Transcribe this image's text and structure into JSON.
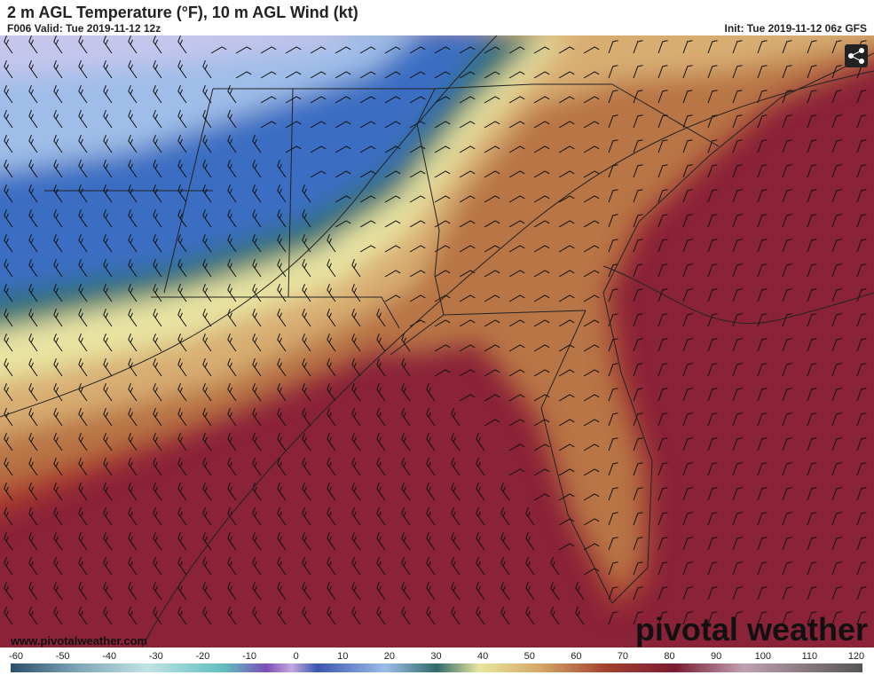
{
  "header": {
    "title": "2 m AGL Temperature (°F), 10 m AGL Wind (kt)",
    "valid": "F006 Valid: Tue 2019-11-12 12z",
    "init": "Init: Tue 2019-11-12 06z GFS"
  },
  "map": {
    "watermark": "www.pivotalweather.com",
    "logo": "pivotal weather"
  },
  "colorbar": {
    "ticks": [
      -60,
      -50,
      -40,
      -30,
      -20,
      -10,
      0,
      10,
      20,
      30,
      40,
      50,
      60,
      70,
      80,
      90,
      100,
      110,
      120
    ]
  }
}
